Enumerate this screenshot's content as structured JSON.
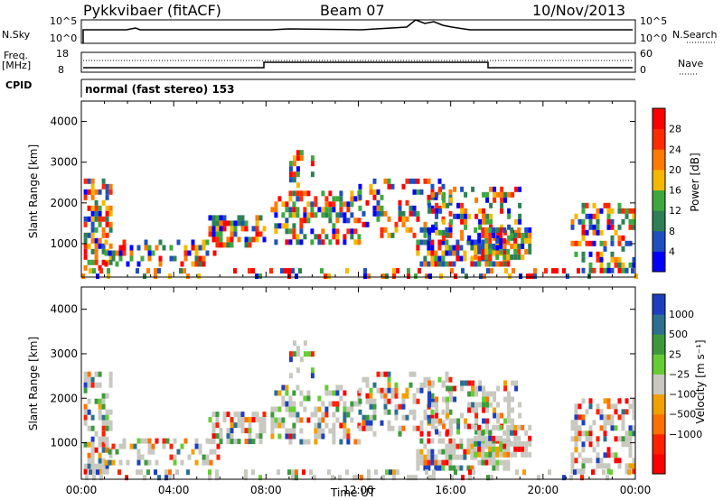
{
  "header": {
    "station": "Pykkvibaer (fitACF)",
    "beam": "Beam 07",
    "date": "10/Nov/2013"
  },
  "top_panels": {
    "nsky_label": "N.Sky",
    "nsky_ticks": [
      "10^5",
      "10^0"
    ],
    "nsearch_label": "N.Search",
    "nsearch_ticks": [
      "10^5",
      "10^0"
    ],
    "freq_label": "Freq.",
    "freq_unit": "[MHz]",
    "freq_ticks": [
      "18",
      "8"
    ],
    "nave_label": "Nave",
    "nave_ticks": [
      "60",
      "0"
    ],
    "cpid_label": "CPID",
    "cpid_text": "normal (fast stereo) 153"
  },
  "chart_data": [
    {
      "type": "heatmap",
      "name": "power-panel",
      "ylabel": "Slant Range [km]",
      "xlim_hours": [
        0,
        24
      ],
      "ylim": [
        180,
        4500
      ],
      "yticks": [
        "1000",
        "2000",
        "3000",
        "4000"
      ],
      "colorbar": {
        "label": "Power [dB]",
        "ticks": [
          "4",
          "8",
          "12",
          "16",
          "20",
          "24",
          "28"
        ],
        "colors": [
          "#0000ff",
          "#1f4fbf",
          "#2e7f55",
          "#3ea83e",
          "#f5b800",
          "#ff7a00",
          "#ff2a00",
          "#ff0000"
        ]
      }
    },
    {
      "type": "heatmap",
      "name": "velocity-panel",
      "ylabel": "Slant Range [km]",
      "xlim_hours": [
        0,
        24
      ],
      "ylim": [
        180,
        4500
      ],
      "yticks": [
        "1000",
        "2000",
        "3000",
        "4000"
      ],
      "xticks": [
        "00:00",
        "04:00",
        "08:00",
        "12:00",
        "16:00",
        "20:00",
        "00:00"
      ],
      "xlabel": "Time UT",
      "colorbar": {
        "label": "Velocity  [m s⁻¹]",
        "ticks": [
          "1000",
          "500",
          "25",
          "−25",
          "−100",
          "−500",
          "−1000"
        ],
        "colors": [
          "#1d3fbf",
          "#2e6f8f",
          "#3c9a3c",
          "#66cc33",
          "#c8c8c0",
          "#f0a000",
          "#ff7000",
          "#ff2000",
          "#ff0000"
        ]
      }
    }
  ]
}
